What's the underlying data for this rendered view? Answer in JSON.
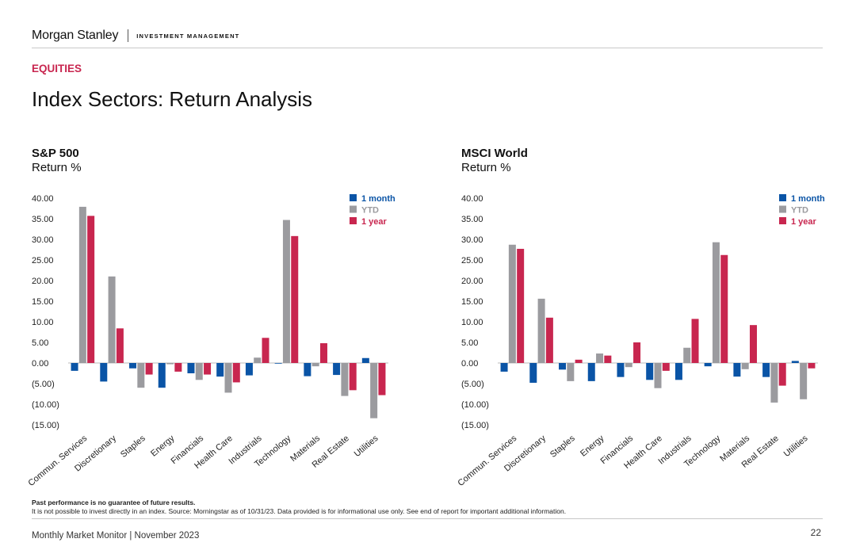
{
  "header": {
    "brand": "Morgan Stanley",
    "division": "INVESTMENT MANAGEMENT"
  },
  "section_label": "EQUITIES",
  "page_title": "Index Sectors: Return Analysis",
  "charts": [
    {
      "title": "S&P 500",
      "subtitle": "Return %"
    },
    {
      "title": "MSCI World",
      "subtitle": "Return %"
    }
  ],
  "colors": {
    "1 month": "#0a54a6",
    "YTD": "#9b9b9f",
    "1 year": "#c8264f",
    "accent": "#c8264f"
  },
  "chart_data": [
    {
      "type": "bar",
      "title": "S&P 500",
      "ylabel": "Return %",
      "categories": [
        "Commun. Services",
        "Discretionary",
        "Staples",
        "Energy",
        "Financials",
        "Health Care",
        "Industrials",
        "Technology",
        "Materials",
        "Real Estate",
        "Utilities"
      ],
      "series": [
        {
          "name": "1 month",
          "values": [
            -1.9,
            -4.5,
            -1.3,
            -6.0,
            -2.5,
            -3.3,
            -3.0,
            -0.1,
            -3.2,
            -2.9,
            1.2
          ]
        },
        {
          "name": "YTD",
          "values": [
            37.9,
            21.0,
            -6.0,
            -0.3,
            -4.1,
            -7.2,
            1.3,
            34.7,
            -0.8,
            -8.0,
            -13.4
          ]
        },
        {
          "name": "1 year",
          "values": [
            35.7,
            8.4,
            -2.8,
            -2.1,
            -2.8,
            -4.7,
            6.1,
            30.8,
            4.8,
            -6.6,
            -7.8
          ]
        }
      ],
      "ylim": [
        -15,
        40
      ],
      "yticks": [
        "40.00",
        "35.00",
        "30.00",
        "25.00",
        "20.00",
        "15.00",
        "10.00",
        "5.00",
        "0.00",
        "(5.00)",
        "(10.00)",
        "(15.00)"
      ],
      "grid": false,
      "legend": "top-right"
    },
    {
      "type": "bar",
      "title": "MSCI World",
      "ylabel": "Return %",
      "categories": [
        "Commun. Services",
        "Discretionary",
        "Staples",
        "Energy",
        "Financials",
        "Health Care",
        "Industrials",
        "Technology",
        "Materials",
        "Real Estate",
        "Utilities"
      ],
      "series": [
        {
          "name": "1 month",
          "values": [
            -2.1,
            -4.8,
            -1.6,
            -4.4,
            -3.4,
            -4.1,
            -4.1,
            -0.8,
            -3.3,
            -3.4,
            0.5
          ]
        },
        {
          "name": "YTD",
          "values": [
            28.7,
            15.6,
            -4.4,
            2.3,
            -1.0,
            -6.1,
            3.7,
            29.3,
            -1.5,
            -9.6,
            -8.8
          ]
        },
        {
          "name": "1 year",
          "values": [
            27.7,
            11.0,
            0.8,
            1.8,
            5.0,
            -1.9,
            10.7,
            26.2,
            9.2,
            -5.5,
            -1.3
          ]
        }
      ],
      "ylim": [
        -15,
        40
      ],
      "yticks": [
        "40.00",
        "35.00",
        "30.00",
        "25.00",
        "20.00",
        "15.00",
        "10.00",
        "5.00",
        "0.00",
        "(5.00)",
        "(10.00)",
        "(15.00)"
      ],
      "grid": false,
      "legend": "top-right"
    }
  ],
  "notes": {
    "line1": "Past performance is no guarantee of future results.",
    "line2": "It is not possible to invest directly in an index. Source: Morningstar as of 10/31/23. Data provided is for informational use only. See end of report for important additional information."
  },
  "footer": {
    "text": "Monthly Market Monitor | November 2023",
    "page": "22"
  }
}
